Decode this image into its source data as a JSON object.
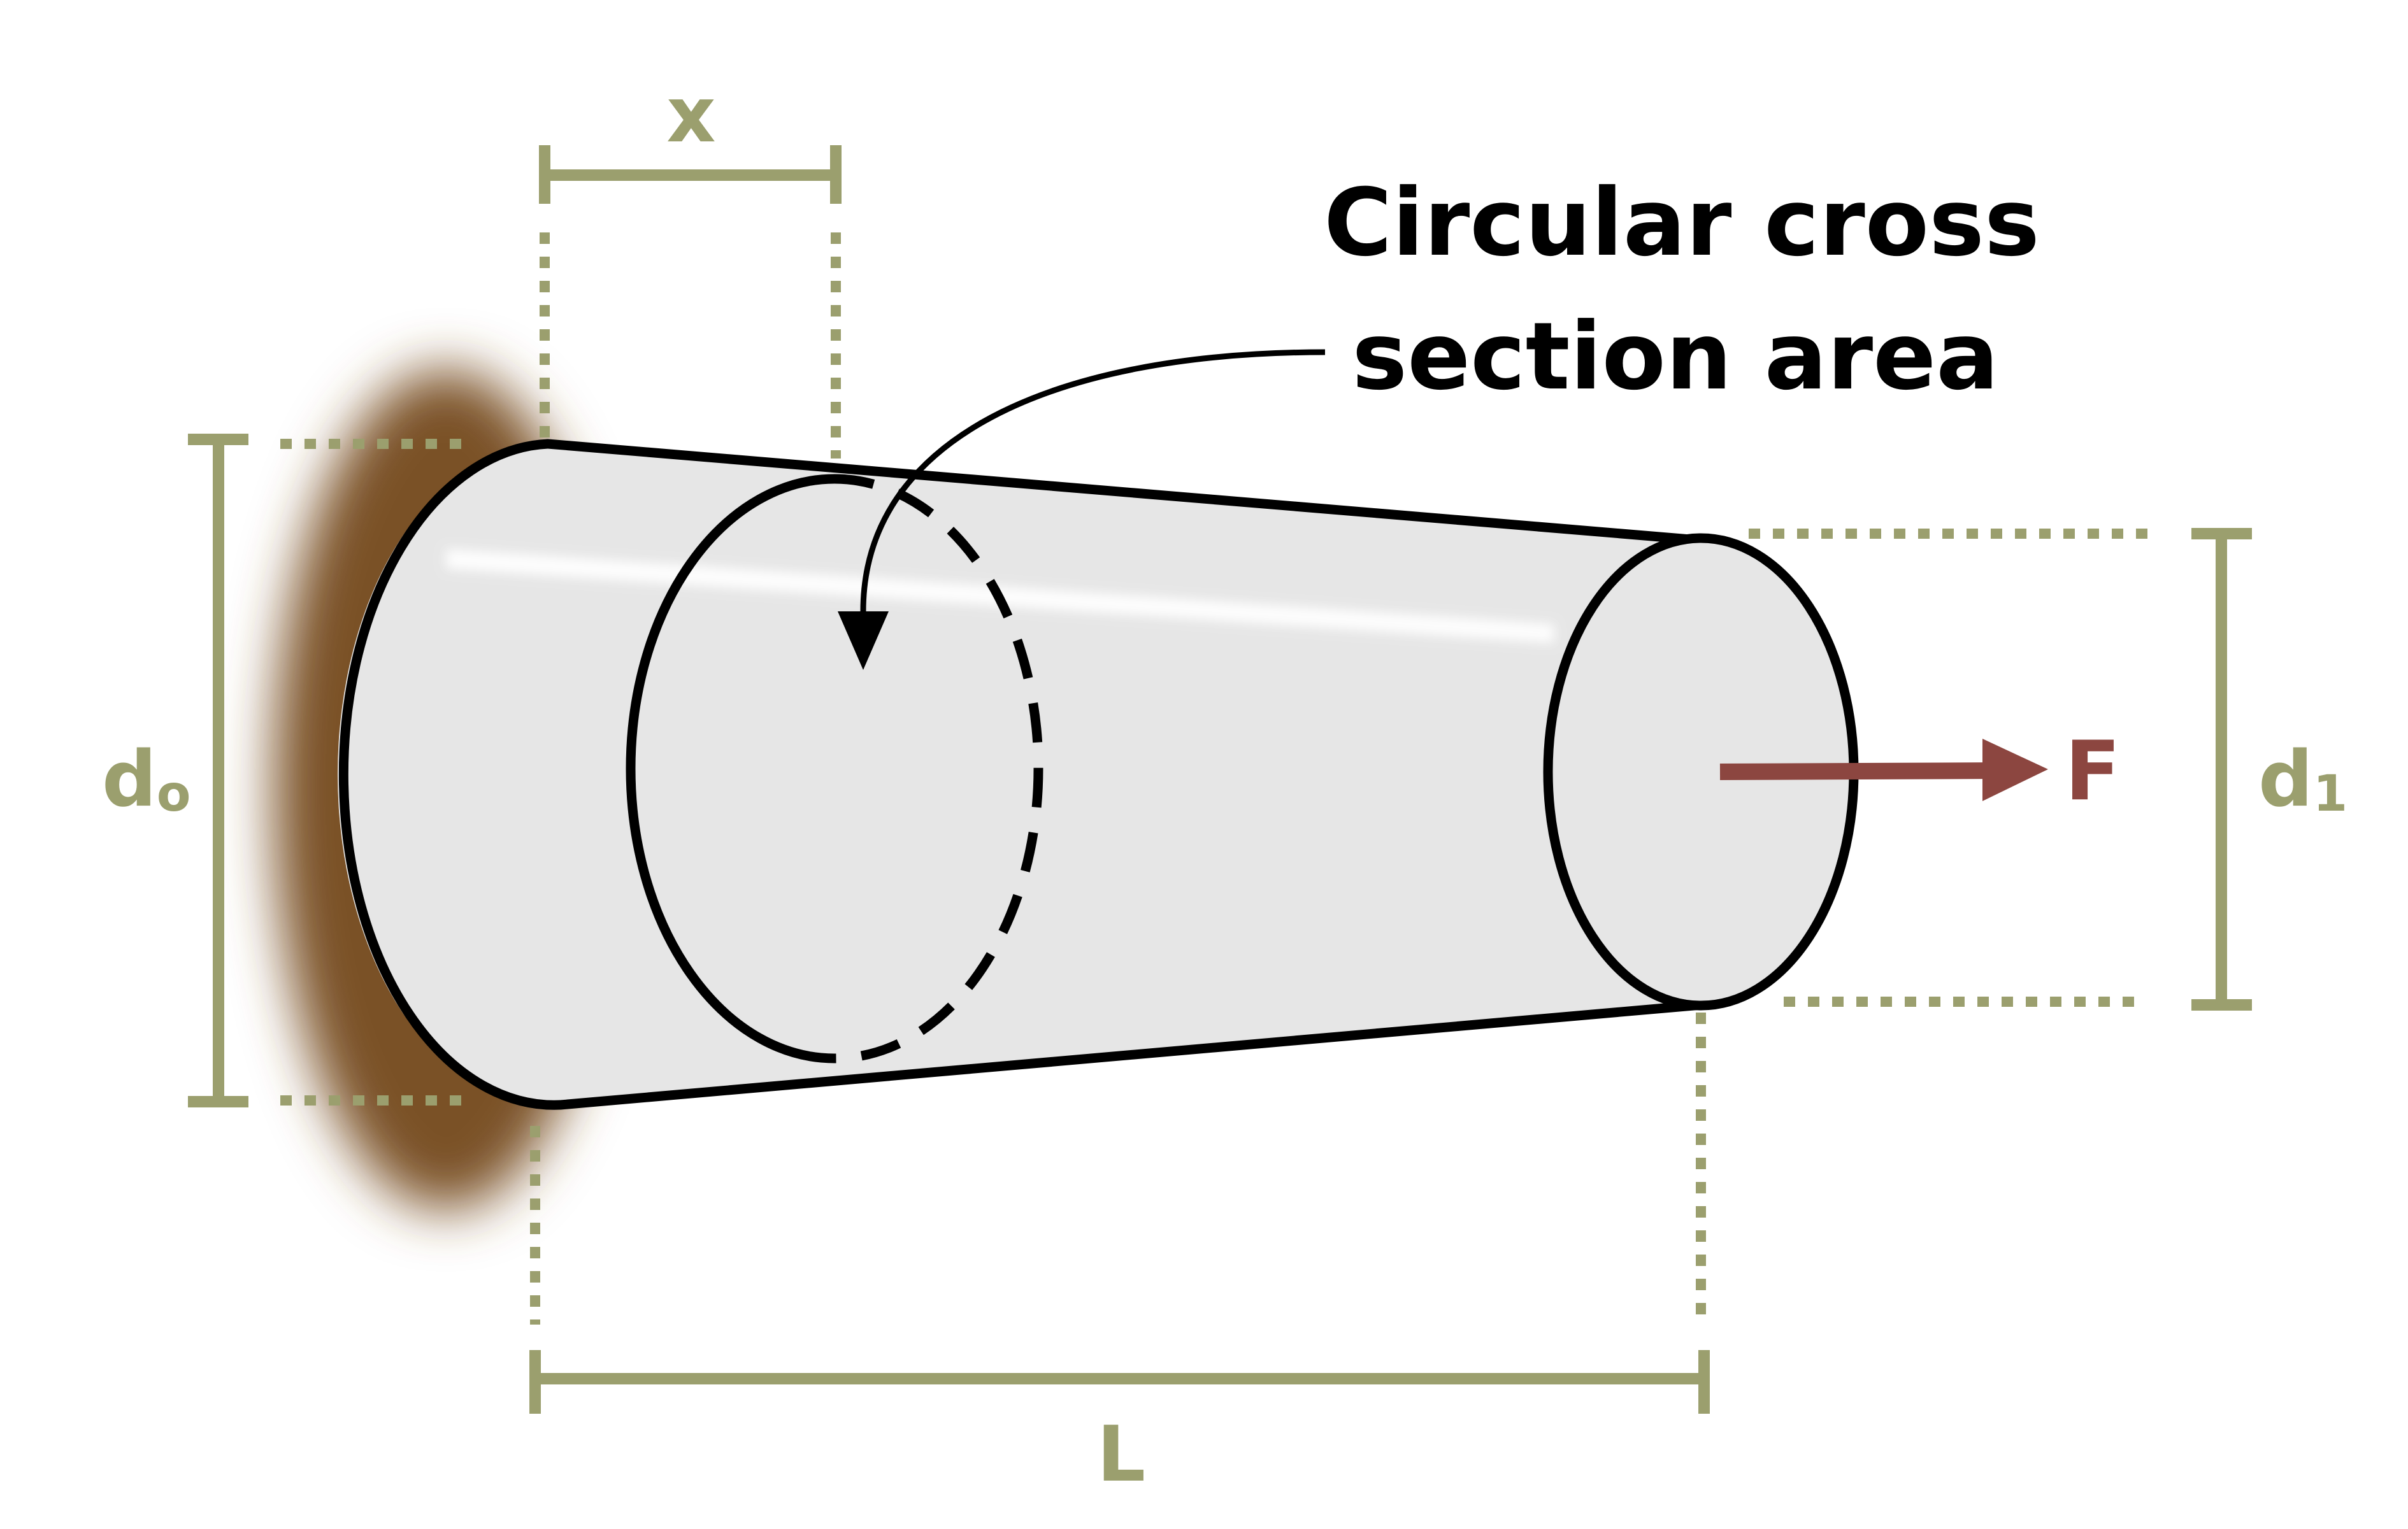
{
  "diagram": {
    "title": "Tapered circular rod fixed at one end under axial force",
    "labels": {
      "x": "x",
      "length": "L",
      "diameter_start_base": "d",
      "diameter_start_sub": "o",
      "diameter_end_base": "d",
      "diameter_end_sub": "1",
      "force": "F",
      "callout_line1": "Circular cross",
      "callout_line2": "section area"
    },
    "colors": {
      "dimension": "#9b9f6e",
      "force": "#8c4640",
      "outline": "#000000",
      "body_fill": "#e6e6e6",
      "wall": "#7a5128",
      "text": "#000000"
    }
  }
}
